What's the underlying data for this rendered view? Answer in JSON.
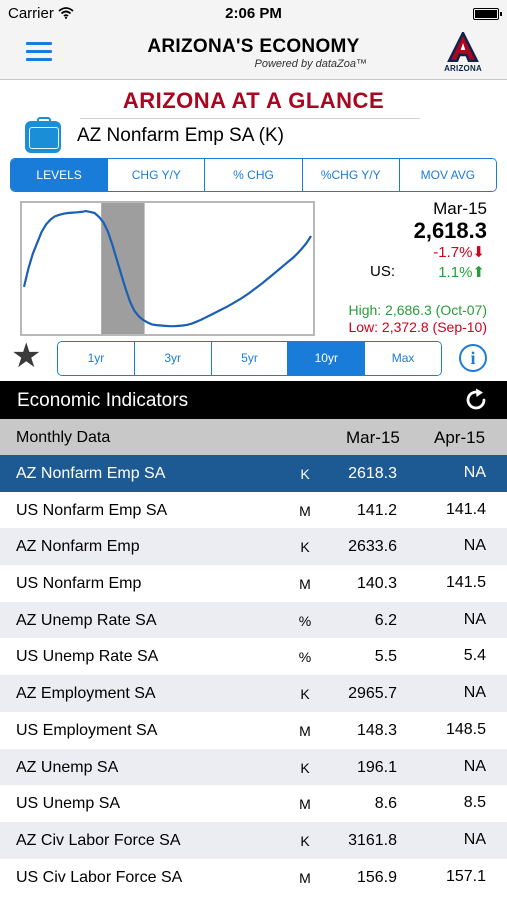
{
  "status_bar": {
    "carrier": "Carrier",
    "time": "2:06 PM"
  },
  "header": {
    "title": "ARIZONA'S ECONOMY",
    "subtitle": "Powered by dataZoa™",
    "logo_text": "ARIZONA"
  },
  "glance": {
    "title": "ARIZONA AT A GLANCE",
    "series_name": "AZ Nonfarm Emp SA (K)"
  },
  "view_tabs": [
    {
      "label": "LEVELS",
      "active": true
    },
    {
      "label": "CHG Y/Y",
      "active": false
    },
    {
      "label": "% CHG",
      "active": false
    },
    {
      "label": "%CHG Y/Y",
      "active": false
    },
    {
      "label": "MOV AVG",
      "active": false
    }
  ],
  "range_tabs": [
    {
      "label": "1yr",
      "active": false
    },
    {
      "label": "3yr",
      "active": false
    },
    {
      "label": "5yr",
      "active": false
    },
    {
      "label": "10yr",
      "active": true
    },
    {
      "label": "Max",
      "active": false
    }
  ],
  "stats": {
    "date": "Mar-15",
    "value": "2,618.3",
    "yoy": "-1.7%",
    "yoy_arrow": "⬇",
    "us_label": "US:",
    "us_value": "1.1%",
    "us_arrow": "⬆",
    "high": "High: 2,686.3 (Oct-07)",
    "low": "Low: 2,372.8 (Sep-10)"
  },
  "chart_data": {
    "type": "line",
    "series": [
      {
        "values": [
          2480,
          2530,
          2570,
          2600,
          2630,
          2650,
          2663,
          2672,
          2676,
          2679,
          2681,
          2682,
          2683,
          2684,
          2686,
          2684,
          2681,
          2670,
          2655,
          2630,
          2595,
          2555,
          2515,
          2475,
          2440,
          2415,
          2400,
          2390,
          2383,
          2378,
          2376,
          2375,
          2374,
          2373,
          2373,
          2374,
          2375,
          2377,
          2380,
          2385,
          2390,
          2396,
          2402,
          2408,
          2414,
          2420,
          2426,
          2433,
          2440,
          2447,
          2455,
          2463,
          2472,
          2481,
          2490,
          2500,
          2510,
          2520,
          2530,
          2540,
          2550,
          2560,
          2572,
          2585,
          2600,
          2618.3
        ]
      }
    ],
    "recession_shading": {
      "start": "Dec-07",
      "end": "Jun-09",
      "color": "#9e9e9e"
    },
    "line_color": "#1a5fb4",
    "x_range": [
      "Apr-05",
      "Mar-15"
    ],
    "ylim": [
      2360,
      2700
    ]
  },
  "indicators": {
    "title": "Economic Indicators",
    "col_label": "Monthly Data",
    "col_1": "Mar-15",
    "col_2": "Apr-15",
    "rows": [
      {
        "name": "AZ Nonfarm Emp SA",
        "unit": "K",
        "v1": "2618.3",
        "v2": "NA",
        "selected": true
      },
      {
        "name": "US Nonfarm Emp SA",
        "unit": "M",
        "v1": "141.2",
        "v2": "141.4"
      },
      {
        "name": "AZ Nonfarm Emp",
        "unit": "K",
        "v1": "2633.6",
        "v2": "NA"
      },
      {
        "name": "US Nonfarm Emp",
        "unit": "M",
        "v1": "140.3",
        "v2": "141.5"
      },
      {
        "name": "AZ Unemp Rate SA",
        "unit": "%",
        "v1": "6.2",
        "v2": "NA"
      },
      {
        "name": "US Unemp Rate SA",
        "unit": "%",
        "v1": "5.5",
        "v2": "5.4"
      },
      {
        "name": "AZ Employment SA",
        "unit": "K",
        "v1": "2965.7",
        "v2": "NA"
      },
      {
        "name": "US Employment SA",
        "unit": "M",
        "v1": "148.3",
        "v2": "148.5"
      },
      {
        "name": "AZ Unemp SA",
        "unit": "K",
        "v1": "196.1",
        "v2": "NA"
      },
      {
        "name": "US Unemp SA",
        "unit": "M",
        "v1": "8.6",
        "v2": "8.5"
      },
      {
        "name": "AZ Civ Labor Force SA",
        "unit": "K",
        "v1": "3161.8",
        "v2": "NA"
      },
      {
        "name": "US Civ Labor Force SA",
        "unit": "M",
        "v1": "156.9",
        "v2": "157.1"
      }
    ]
  },
  "colors": {
    "accent": "#1a7cd9",
    "brand_red": "#ab0520",
    "selected_row": "#1d5a94",
    "up": "#2a9d3a",
    "down": "#d0021b"
  }
}
